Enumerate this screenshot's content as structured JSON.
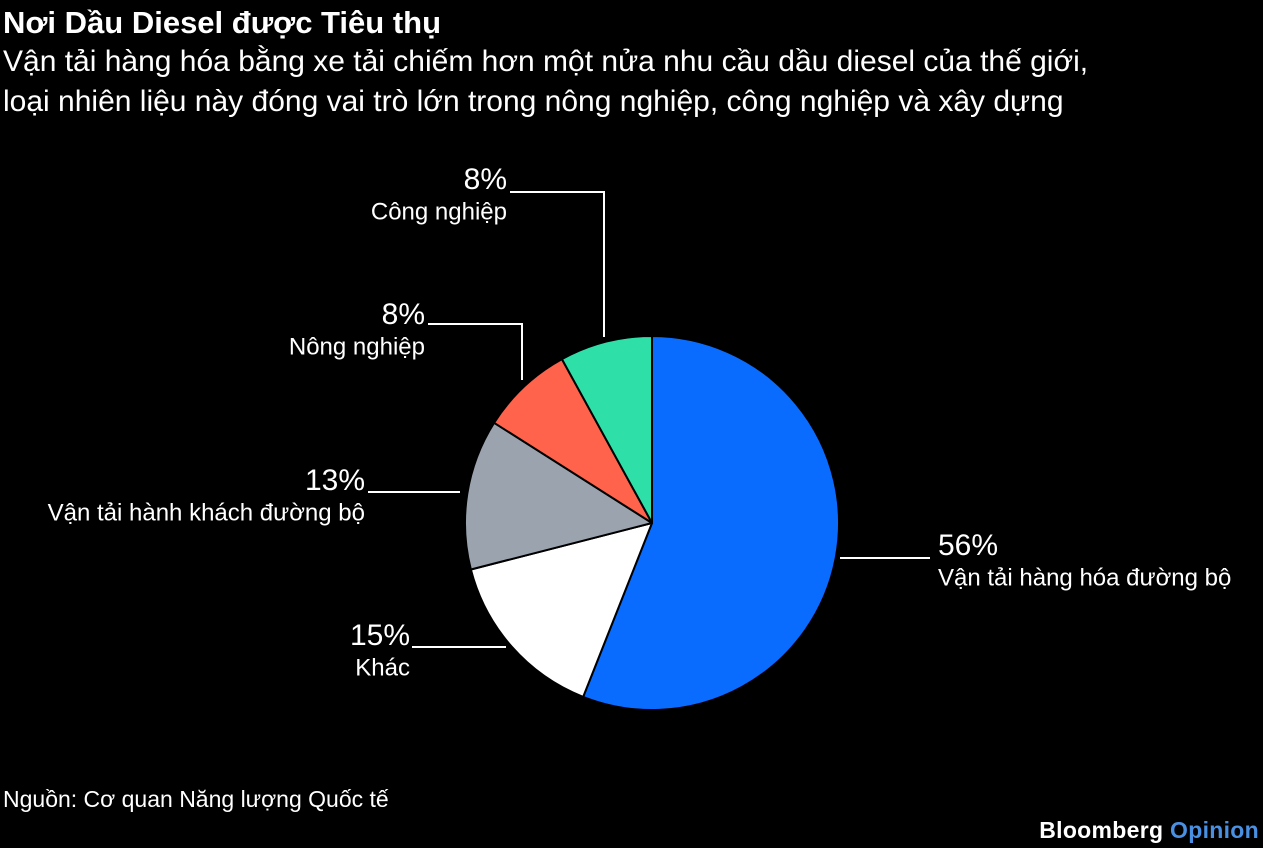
{
  "title": "Nơi Dầu Diesel được Tiêu thụ",
  "subtitle": {
    "line1": "Vận tải hàng hóa bằng xe tải chiếm hơn một nửa nhu cầu dầu diesel của thế giới,",
    "line2": "loại nhiên liệu này đóng vai trò lớn trong nông nghiệp, công nghiệp và xây dựng"
  },
  "source": "Nguồn: Cơ quan Năng lượng Quốc tế",
  "brand": {
    "part1": "Bloomberg",
    "part2": "Opinion"
  },
  "colors": {
    "background": "#000000",
    "text": "#ffffff",
    "leader": "#ffffff",
    "brand_accent": "#4a90e2"
  },
  "chart_data": {
    "type": "pie",
    "title": "Nơi Dầu Diesel được Tiêu thụ",
    "slices": [
      {
        "label": "Vận tải hàng hóa đường bộ",
        "value": 56,
        "value_label": "56%",
        "color": "#0a6cff"
      },
      {
        "label": "Khác",
        "value": 15,
        "value_label": "15%",
        "color": "#ffffff"
      },
      {
        "label": "Vận tải hành khách đường bộ",
        "value": 13,
        "value_label": "13%",
        "color": "#9aa3ae"
      },
      {
        "label": "Nông nghiệp",
        "value": 8,
        "value_label": "8%",
        "color": "#ff634b"
      },
      {
        "label": "Công nghiệp",
        "value": 8,
        "value_label": "8%",
        "color": "#2ee0a8"
      }
    ],
    "start": "12 o'clock",
    "direction": "clockwise",
    "legend": "none (direct labels)",
    "slice_border": "#000000"
  }
}
